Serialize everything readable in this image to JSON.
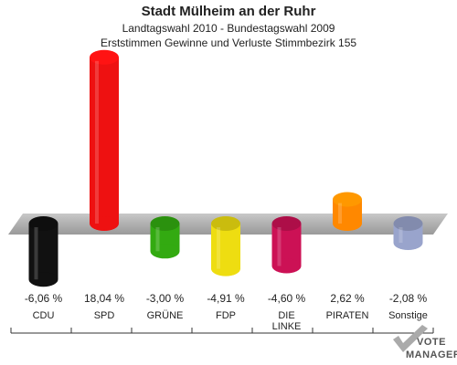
{
  "header": {
    "title": "Stadt Mülheim an der Ruhr",
    "subtitle": "Landtagswahl 2010 - Bundestagswahl 2009",
    "description": "Erststimmen Gewinne und Verluste Stimmbezirk 155"
  },
  "chart_data": {
    "type": "bar",
    "categories": [
      "CDU",
      "SPD",
      "GRÜNE",
      "FDP",
      "DIE LINKE",
      "PIRATEN",
      "Sonstige"
    ],
    "category_lines": [
      [
        "CDU"
      ],
      [
        "SPD"
      ],
      [
        "GRÜNE"
      ],
      [
        "FDP"
      ],
      [
        "DIE",
        "LINKE"
      ],
      [
        "PIRATEN"
      ],
      [
        "Sonstige"
      ]
    ],
    "values": [
      -6.06,
      18.04,
      -3.0,
      -4.91,
      -4.6,
      2.62,
      -2.08
    ],
    "value_labels": [
      "-6,06 %",
      "18,04 %",
      "-3,00 %",
      "-4,91 %",
      "-4,60 %",
      "2,62 %",
      "-2,08 %"
    ],
    "colors": [
      "#111111",
      "#ee1111",
      "#33aa11",
      "#eedd11",
      "#cc1155",
      "#ff8800",
      "#99a4cc"
    ],
    "baseline": 0,
    "grid": false,
    "legend": "none"
  },
  "watermark": {
    "line1": "VOTE",
    "line2": "MANAGER"
  }
}
